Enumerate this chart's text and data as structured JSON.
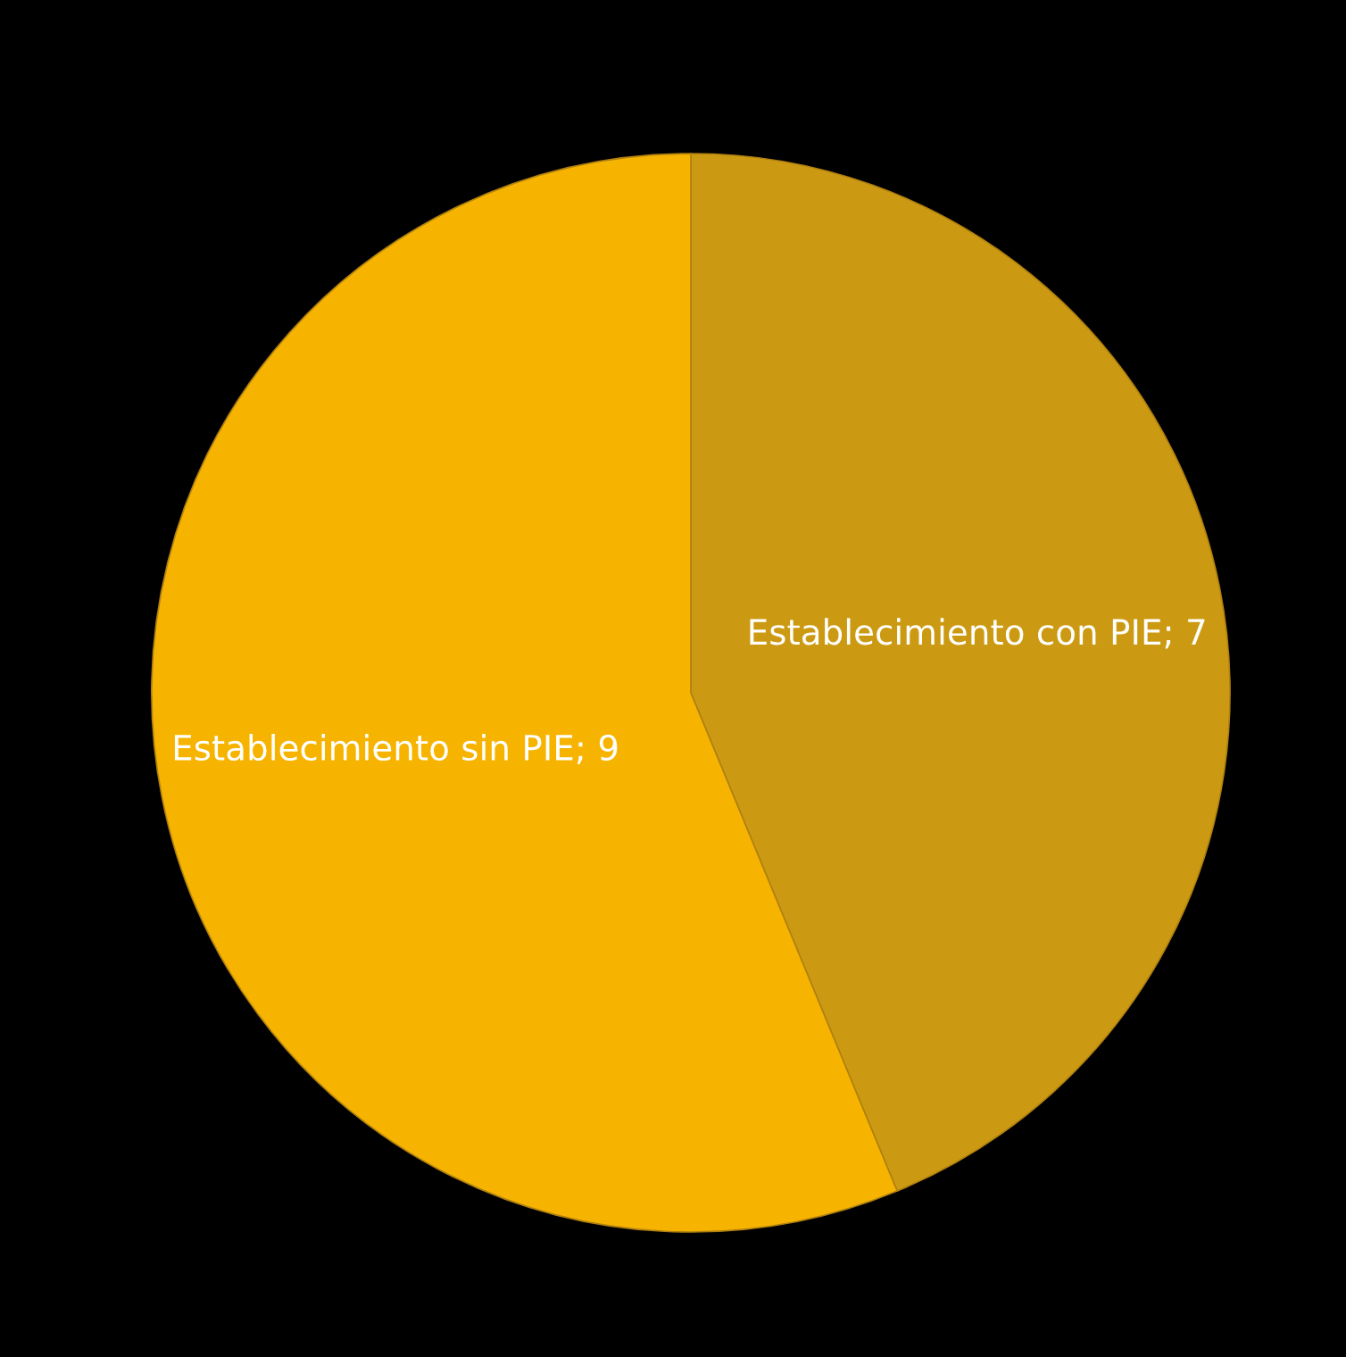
{
  "chart_data": {
    "type": "pie",
    "categories": [
      "Establecimiento con PIE",
      "Establecimiento sin PIE"
    ],
    "values": [
      7,
      9
    ],
    "colors": [
      "#cc9a12",
      "#f6b400"
    ],
    "value_labels": [
      "; 7",
      "; 9"
    ],
    "legend": false
  }
}
